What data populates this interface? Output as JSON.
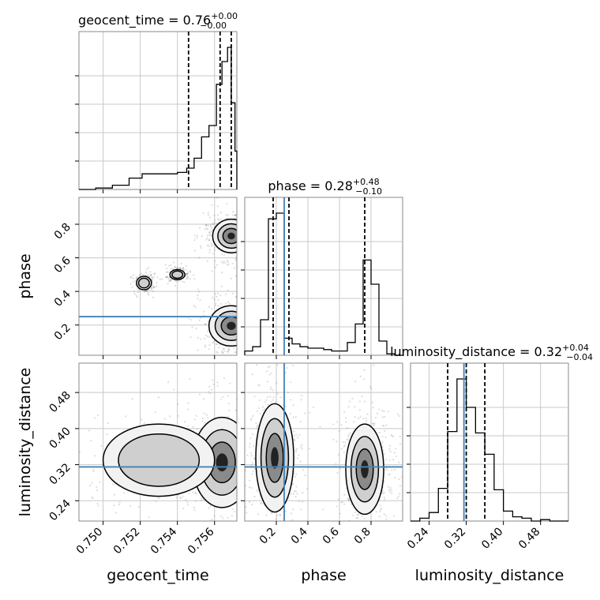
{
  "chart_data": [
    {
      "type": "histogram",
      "panel": "geocent_time-marginal",
      "title": {
        "prefix": "geocent_time = 0.76",
        "sup": "+0.00",
        "sub": "−0.00"
      },
      "xlim": [
        0.7487,
        0.7572
      ],
      "quantiles": [
        0.7546,
        0.7563,
        0.7569
      ],
      "bins": [
        [
          0.7487,
          0.7496,
          0.0
        ],
        [
          0.7496,
          0.7505,
          0.01
        ],
        [
          0.7505,
          0.7514,
          0.03
        ],
        [
          0.7514,
          0.7521,
          0.08
        ],
        [
          0.7521,
          0.7531,
          0.11
        ],
        [
          0.7531,
          0.754,
          0.11
        ],
        [
          0.754,
          0.7545,
          0.12
        ],
        [
          0.7545,
          0.7549,
          0.15
        ],
        [
          0.7549,
          0.7553,
          0.22
        ],
        [
          0.7553,
          0.7557,
          0.37
        ],
        [
          0.7557,
          0.7561,
          0.45
        ],
        [
          0.7561,
          0.7564,
          0.74
        ],
        [
          0.7564,
          0.7567,
          0.9
        ],
        [
          0.7567,
          0.7569,
          1.0
        ],
        [
          0.7569,
          0.7571,
          0.61
        ],
        [
          0.7571,
          0.7572,
          0.27
        ]
      ]
    },
    {
      "type": "histogram",
      "panel": "phase-marginal",
      "title": {
        "prefix": "phase = 0.28",
        "sup": "+0.48",
        "sub": "−0.10"
      },
      "xlim": [
        0.0,
        1.0
      ],
      "truth": 0.25,
      "quantiles": [
        0.18,
        0.28,
        0.76
      ],
      "bins": [
        [
          0.0,
          0.05,
          0.03
        ],
        [
          0.05,
          0.1,
          0.06
        ],
        [
          0.1,
          0.15,
          0.25
        ],
        [
          0.15,
          0.2,
          0.96
        ],
        [
          0.2,
          0.25,
          1.0
        ],
        [
          0.25,
          0.3,
          0.12
        ],
        [
          0.3,
          0.35,
          0.08
        ],
        [
          0.35,
          0.4,
          0.06
        ],
        [
          0.4,
          0.45,
          0.05
        ],
        [
          0.45,
          0.5,
          0.05
        ],
        [
          0.5,
          0.55,
          0.04
        ],
        [
          0.55,
          0.6,
          0.03
        ],
        [
          0.6,
          0.65,
          0.03
        ],
        [
          0.65,
          0.7,
          0.09
        ],
        [
          0.7,
          0.75,
          0.22
        ],
        [
          0.75,
          0.8,
          0.67
        ],
        [
          0.8,
          0.85,
          0.5
        ],
        [
          0.85,
          0.9,
          0.1
        ],
        [
          0.9,
          0.95,
          0.01
        ],
        [
          0.95,
          1.0,
          0.0
        ]
      ]
    },
    {
      "type": "histogram",
      "panel": "luminosity_distance-marginal",
      "title": {
        "prefix": "luminosity_distance = 0.32",
        "sup": "+0.04",
        "sub": "−0.04"
      },
      "xlim": [
        0.2,
        0.54
      ],
      "truth": 0.315,
      "quantiles": [
        0.28,
        0.32,
        0.36
      ],
      "bins": [
        [
          0.2,
          0.22,
          0.0
        ],
        [
          0.22,
          0.24,
          0.02
        ],
        [
          0.24,
          0.26,
          0.06
        ],
        [
          0.26,
          0.28,
          0.23
        ],
        [
          0.28,
          0.3,
          0.63
        ],
        [
          0.3,
          0.32,
          1.0
        ],
        [
          0.32,
          0.34,
          0.8
        ],
        [
          0.34,
          0.36,
          0.62
        ],
        [
          0.36,
          0.38,
          0.47
        ],
        [
          0.38,
          0.4,
          0.22
        ],
        [
          0.4,
          0.42,
          0.07
        ],
        [
          0.42,
          0.44,
          0.03
        ],
        [
          0.44,
          0.46,
          0.02
        ],
        [
          0.46,
          0.48,
          0.0
        ],
        [
          0.48,
          0.5,
          0.01
        ],
        [
          0.5,
          0.54,
          0.0
        ]
      ]
    },
    {
      "type": "scatter",
      "panel": "geocent_time-vs-phase",
      "xlim": [
        0.7487,
        0.7572
      ],
      "ylim": [
        0.02,
        0.96
      ],
      "truth_y": 0.25,
      "density_regions": [
        {
          "cx": 0.7569,
          "cy": 0.195,
          "rx": 0.0006,
          "ry": 0.06,
          "level": "dense"
        },
        {
          "cx": 0.7569,
          "cy": 0.73,
          "rx": 0.0005,
          "ry": 0.05,
          "level": "dense"
        },
        {
          "cx": 0.7522,
          "cy": 0.45,
          "rx": 0.0002,
          "ry": 0.02,
          "level": "medium"
        },
        {
          "cx": 0.754,
          "cy": 0.5,
          "rx": 0.0002,
          "ry": 0.015,
          "level": "medium"
        }
      ]
    },
    {
      "type": "scatter",
      "panel": "geocent_time-vs-luminosity_distance",
      "xlim": [
        0.7487,
        0.7572
      ],
      "ylim": [
        0.195,
        0.545
      ],
      "truth_y": 0.315,
      "density_regions": [
        {
          "cx": 0.7564,
          "cy": 0.325,
          "rx": 0.0008,
          "ry": 0.05,
          "level": "dense"
        },
        {
          "cx": 0.753,
          "cy": 0.33,
          "rx": 0.0015,
          "ry": 0.04,
          "level": "medium"
        }
      ]
    },
    {
      "type": "scatter",
      "panel": "phase-vs-luminosity_distance",
      "xlim": [
        0.0,
        1.0
      ],
      "ylim": [
        0.195,
        0.545
      ],
      "truth_x": 0.25,
      "truth_y": 0.315,
      "density_regions": [
        {
          "cx": 0.19,
          "cy": 0.335,
          "rx": 0.06,
          "ry": 0.06,
          "level": "dense"
        },
        {
          "cx": 0.76,
          "cy": 0.31,
          "rx": 0.06,
          "ry": 0.05,
          "level": "dense"
        }
      ]
    }
  ],
  "axes": {
    "geocent_time": {
      "label": "geocent_time",
      "ticks": [
        "0.750",
        "0.752",
        "0.754",
        "0.756"
      ],
      "tick_values": [
        0.75,
        0.752,
        0.754,
        0.756
      ]
    },
    "phase": {
      "label": "phase",
      "ticks": [
        "0.2",
        "0.4",
        "0.6",
        "0.8"
      ],
      "tick_values": [
        0.2,
        0.4,
        0.6,
        0.8
      ]
    },
    "luminosity_distance": {
      "label": "luminosity_distance",
      "ticks": [
        "0.24",
        "0.32",
        "0.40",
        "0.48"
      ],
      "tick_values": [
        0.24,
        0.32,
        0.4,
        0.48
      ]
    }
  },
  "colors": {
    "truth": "#4682b4",
    "hist": "#000000",
    "grid": "#c8c8c8"
  }
}
